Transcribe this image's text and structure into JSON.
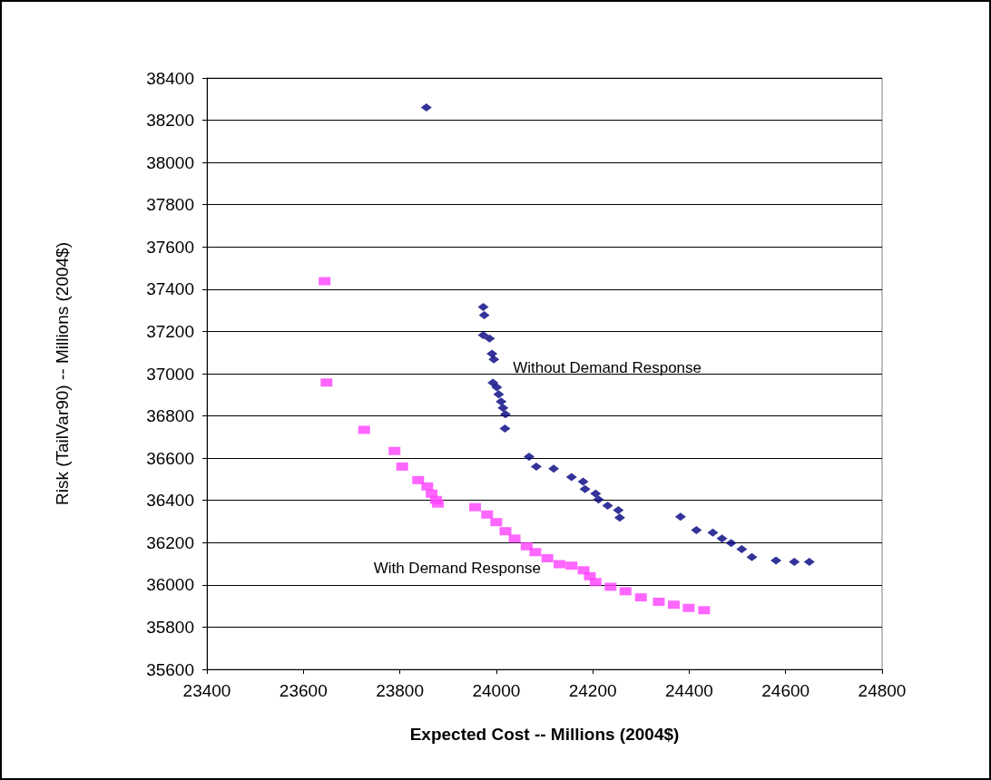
{
  "chart_data": {
    "type": "scatter",
    "xlabel": "Expected Cost -- Millions (2004$)",
    "ylabel": "Risk (TailVar90) -- Millions (2004$)",
    "xlim": [
      23400,
      24800
    ],
    "xticks": [
      23400,
      23600,
      23800,
      24000,
      24200,
      24400,
      24600,
      24800
    ],
    "ylim": [
      35600,
      38400
    ],
    "yticks": [
      35600,
      35800,
      36000,
      36200,
      36400,
      36600,
      36800,
      37000,
      37200,
      37400,
      37600,
      37800,
      38000,
      38200,
      38400
    ],
    "grid": "y",
    "series": [
      {
        "name": "Without Demand Response",
        "color": "#000080",
        "marker": "diamond",
        "x": [
          23855,
          23973,
          23975,
          23973,
          23986,
          23991,
          23995,
          23993,
          24001,
          24005,
          24010,
          24014,
          24019,
          24018,
          24068,
          24083,
          24119,
          24156,
          24180,
          24184,
          24206,
          24212,
          24231,
          24253,
          24256,
          24382,
          24415,
          24449,
          24468,
          24487,
          24509,
          24530,
          24580,
          24618,
          24649
        ],
        "values": [
          38260,
          37316,
          37277,
          37183,
          37166,
          37094,
          37068,
          36957,
          36936,
          36902,
          36868,
          36838,
          36808,
          36740,
          36607,
          36560,
          36550,
          36510,
          36489,
          36454,
          36432,
          36404,
          36375,
          36354,
          36318,
          36323,
          36259,
          36247,
          36219,
          36198,
          36169,
          36131,
          36115,
          36109,
          36109
        ]
      },
      {
        "name": "With Demand Response",
        "color": "#ff40ff",
        "marker": "square",
        "x": [
          23644,
          23648,
          23726,
          23789,
          23805,
          23838,
          23857,
          23866,
          23875,
          23879,
          23956,
          23981,
          24000,
          24019,
          24038,
          24063,
          24081,
          24106,
          24131,
          24156,
          24181,
          24194,
          24206,
          24237,
          24268,
          24300,
          24337,
          24368,
          24399,
          24431
        ],
        "values": [
          37438,
          36958,
          36734,
          36634,
          36560,
          36496,
          36466,
          36432,
          36402,
          36385,
          36368,
          36333,
          36297,
          36254,
          36219,
          36183,
          36155,
          36126,
          36098,
          36091,
          36069,
          36041,
          36013,
          35991,
          35970,
          35941,
          35920,
          35906,
          35891,
          35880
        ]
      }
    ]
  }
}
